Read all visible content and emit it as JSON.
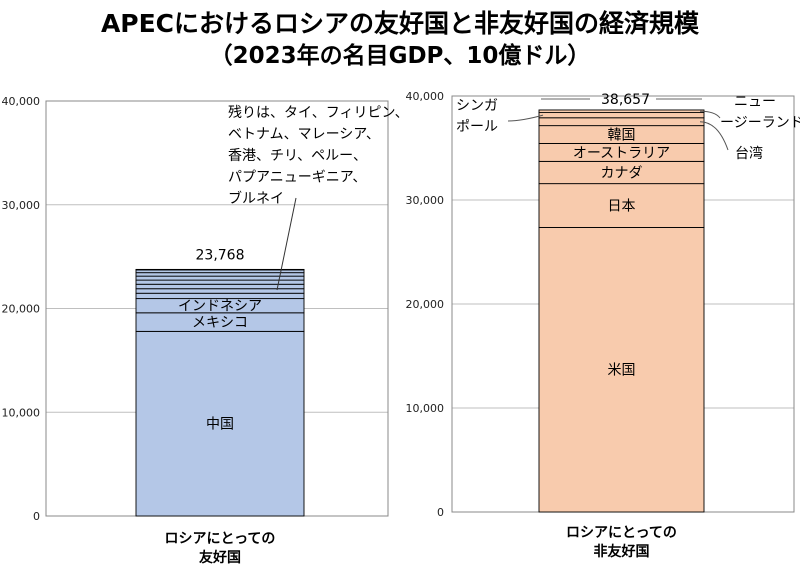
{
  "title_line1": "APECにおけるロシアの友好国と非友好国の経済規模",
  "title_line2": "（2023年の名目GDP、10億ドル）",
  "colors": {
    "friendly": "#b4c7e7",
    "unfriendly": "#f8cbad",
    "grid": "#bfbfbf",
    "axis": "#888888"
  },
  "chart_data": [
    {
      "type": "bar",
      "stacked": true,
      "ylim": [
        0,
        40000
      ],
      "yticks": [
        "0",
        "10,000",
        "20,000",
        "30,000",
        "40,000"
      ],
      "category_lines": [
        "ロシアにとっての",
        "友好国"
      ],
      "total_label": "23,768",
      "segments": [
        {
          "name": "中国",
          "value": 17795,
          "label": "中国"
        },
        {
          "name": "メキシコ",
          "value": 1790,
          "label": "メキシコ"
        },
        {
          "name": "インドネシア",
          "value": 1371,
          "label": "インドネシア"
        },
        {
          "name": "タイ",
          "value": 514,
          "label": ""
        },
        {
          "name": "フィリピン",
          "value": 437,
          "label": ""
        },
        {
          "name": "ベトナム",
          "value": 430,
          "label": ""
        },
        {
          "name": "マレーシア",
          "value": 400,
          "label": ""
        },
        {
          "name": "香港",
          "value": 382,
          "label": ""
        },
        {
          "name": "チリ",
          "value": 335,
          "label": ""
        },
        {
          "name": "ペルー",
          "value": 268,
          "label": ""
        },
        {
          "name": "パプアニューギニア",
          "value": 31,
          "label": ""
        },
        {
          "name": "ブルネイ",
          "value": 15,
          "label": ""
        }
      ],
      "note_lines": [
        "残りは、タイ、フィリピン、",
        "ベトナム、マレーシア、",
        "香港、チリ、ペルー、",
        "パプアニューギニア、",
        "ブルネイ"
      ]
    },
    {
      "type": "bar",
      "stacked": true,
      "ylim": [
        0,
        40000
      ],
      "yticks": [
        "0",
        "10,000",
        "20,000",
        "30,000",
        "40,000"
      ],
      "category_lines": [
        "ロシアにとっての",
        "非友好国"
      ],
      "total_label": "38,657",
      "segments": [
        {
          "name": "米国",
          "value": 27361,
          "label": "米国"
        },
        {
          "name": "日本",
          "value": 4213,
          "label": "日本"
        },
        {
          "name": "カナダ",
          "value": 2140,
          "label": "カナダ"
        },
        {
          "name": "オーストラリア",
          "value": 1724,
          "label": "オーストラリア"
        },
        {
          "name": "韓国",
          "value": 1713,
          "label": "韓国"
        },
        {
          "name": "台湾",
          "value": 756,
          "label": ""
        },
        {
          "name": "シンガポール",
          "value": 501,
          "label": ""
        },
        {
          "name": "ニュージーランド",
          "value": 249,
          "label": ""
        }
      ],
      "callouts": {
        "singapore": [
          "シンガ",
          "ポール"
        ],
        "newzealand": [
          "ニュー",
          "ージーランド"
        ],
        "taiwan": [
          "台湾"
        ]
      }
    }
  ]
}
